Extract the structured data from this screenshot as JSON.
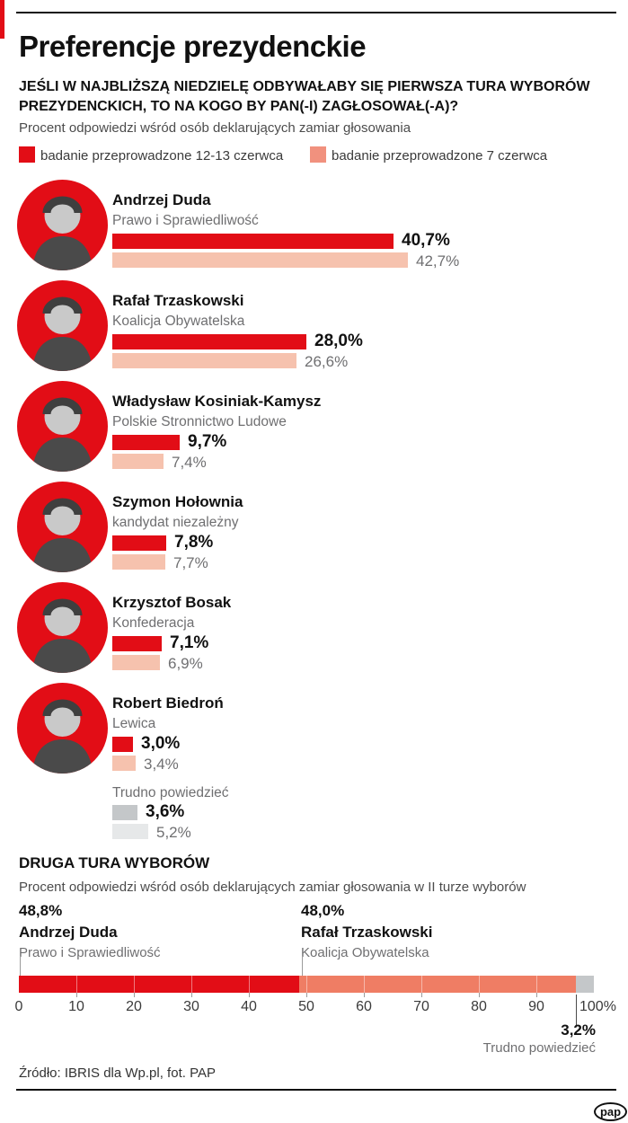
{
  "header": {
    "title": "Preferencje prezydenckie",
    "question_line1": "JEŚLI W NAJBLIŻSZĄ NIEDZIELĘ ODBYWAŁABY SIĘ PIERWSZA TURA WYBORÓW",
    "question_line2": "PREZYDENCKICH, TO NA KOGO BY PAN(-I) ZAGŁOSOWAŁ(-A)?",
    "note": "Procent odpowiedzi wśród osób deklarujących zamiar głosowania"
  },
  "legend": {
    "items": [
      {
        "label": "badanie przeprowadzone 12-13 czerwca",
        "color": "#e20d16"
      },
      {
        "label": "badanie przeprowadzone 7 czerwca",
        "color": "#f1917e"
      }
    ]
  },
  "first_round": {
    "rows": [
      {
        "name": "Andrzej Duda",
        "party": "Prawo i Sprawiedliwość",
        "value_current": "40,7%",
        "value_previous": "42,7%",
        "pct_current": 40.7,
        "pct_previous": 42.7,
        "other": false
      },
      {
        "name": "Rafał Trzaskowski",
        "party": "Koalicja Obywatelska",
        "value_current": "28,0%",
        "value_previous": "26,6%",
        "pct_current": 28.0,
        "pct_previous": 26.6,
        "other": false
      },
      {
        "name": "Władysław Kosiniak-Kamysz",
        "party": "Polskie Stronnictwo Ludowe",
        "value_current": "9,7%",
        "value_previous": "7,4%",
        "pct_current": 9.7,
        "pct_previous": 7.4,
        "other": false
      },
      {
        "name": "Szymon Hołownia",
        "party": "kandydat niezależny",
        "value_current": "7,8%",
        "value_previous": "7,7%",
        "pct_current": 7.8,
        "pct_previous": 7.7,
        "other": false
      },
      {
        "name": "Krzysztof Bosak",
        "party": "Konfederacja",
        "value_current": "7,1%",
        "value_previous": "6,9%",
        "pct_current": 7.1,
        "pct_previous": 6.9,
        "other": false
      },
      {
        "name": "Robert Biedroń",
        "party": "Lewica",
        "value_current": "3,0%",
        "value_previous": "3,4%",
        "pct_current": 3.0,
        "pct_previous": 3.4,
        "other": false
      },
      {
        "name": "Trudno powiedzieć",
        "party": "",
        "value_current": "3,6%",
        "value_previous": "5,2%",
        "pct_current": 3.6,
        "pct_previous": 5.2,
        "other": true
      }
    ]
  },
  "second_round": {
    "heading": "DRUGA TURA WYBORÓW",
    "note": "Procent odpowiedzi wśród osób deklarujących zamiar głosowania w II turze wyborów",
    "left": {
      "value": "48,8%",
      "name": "Andrzej Duda",
      "party": "Prawo i Sprawiedliwość",
      "pct": 48.8
    },
    "right": {
      "value": "48,0%",
      "name": "Rafał Trzaskowski",
      "party": "Koalicja Obywatelska",
      "pct": 48.0
    },
    "other": {
      "value": "3,2%",
      "label": "Trudno powiedzieć",
      "pct": 3.2
    },
    "axis_ticks": [
      "0",
      "10",
      "20",
      "30",
      "40",
      "50",
      "60",
      "70",
      "80",
      "90"
    ],
    "axis_label_end": "100%"
  },
  "footer": {
    "source": "Źródło: IBRIS dla Wp.pl, fot. PAP",
    "logo_text": "pap"
  },
  "colors": {
    "red": "#e20d16",
    "pink": "#f6c2ae",
    "legend_pink": "#f1917e",
    "salmon": "#ef7d64",
    "gray": "#c4c7c9",
    "light_gray": "#e6e8e9"
  },
  "chart_data": [
    {
      "type": "bar",
      "orientation": "horizontal",
      "title": "JEŚLI W NAJBLIŻSZĄ NIEDZIELĘ ODBYWAŁABY SIĘ PIERWSZA TURA WYBORÓW PREZYDENCKICH, TO NA KOGO BY PAN(-I) ZAGŁOSOWAŁ(-A)?",
      "subtitle": "Procent odpowiedzi wśród osób deklarujących zamiar głosowania",
      "categories": [
        "Andrzej Duda",
        "Rafał Trzaskowski",
        "Władysław Kosiniak-Kamysz",
        "Szymon Hołownia",
        "Krzysztof Bosak",
        "Robert Biedroń",
        "Trudno powiedzieć"
      ],
      "series": [
        {
          "name": "badanie przeprowadzone 12-13 czerwca",
          "values": [
            40.7,
            28.0,
            9.7,
            7.8,
            7.1,
            3.0,
            3.6
          ]
        },
        {
          "name": "badanie przeprowadzone 7 czerwca",
          "values": [
            42.7,
            26.6,
            7.4,
            7.7,
            6.9,
            3.4,
            5.2
          ]
        }
      ],
      "value_suffix": "%",
      "legend_position": "top",
      "grid": false
    },
    {
      "type": "bar",
      "mode": "stacked",
      "orientation": "horizontal",
      "title": "DRUGA TURA WYBORÓW",
      "subtitle": "Procent odpowiedzi wśród osób deklarujących zamiar głosowania w II turze wyborów",
      "categories": [
        "Andrzej Duda (Prawo i Sprawiedliwość)",
        "Rafał Trzaskowski (Koalicja Obywatelska)",
        "Trudno powiedzieć"
      ],
      "values": [
        48.8,
        48.0,
        3.2
      ],
      "value_suffix": "%",
      "xlim": [
        0,
        100
      ],
      "x_ticks": [
        0,
        10,
        20,
        30,
        40,
        50,
        60,
        70,
        80,
        90,
        100
      ],
      "grid": true
    }
  ]
}
